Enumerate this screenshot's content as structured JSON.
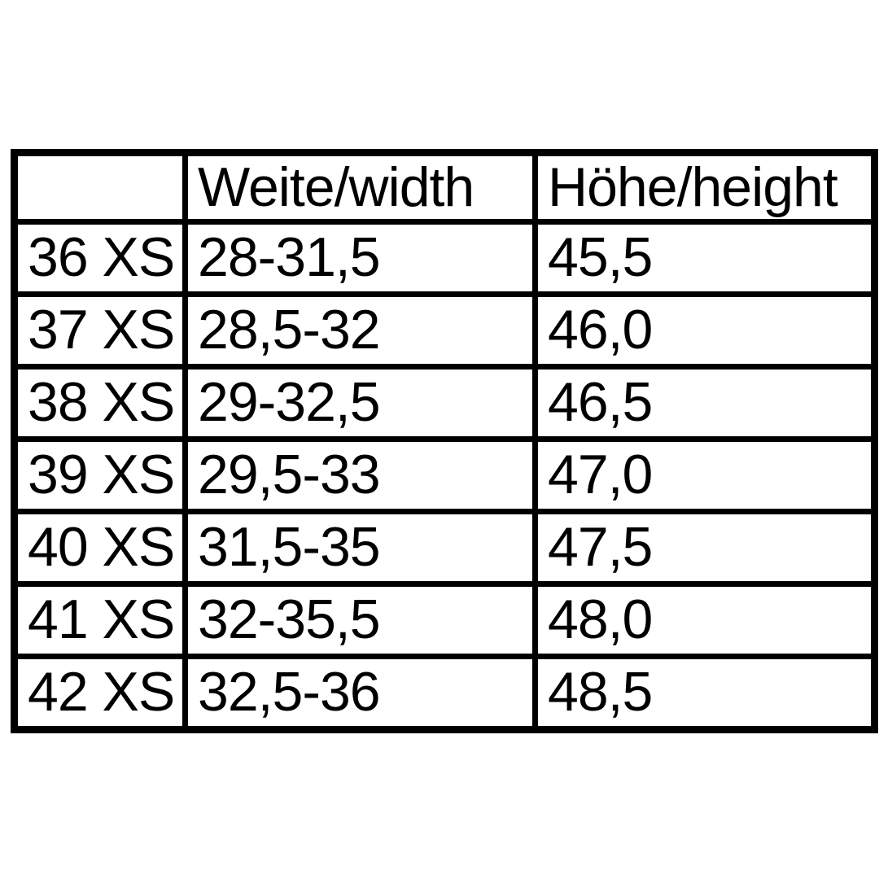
{
  "colors": {
    "background": "#ffffff",
    "border": "#000000",
    "text": "#000000"
  },
  "chart_data": {
    "type": "table",
    "columns": [
      "",
      "Weite/width",
      "Höhe/height"
    ],
    "rows": [
      [
        "36 XS",
        "28-31,5",
        "45,5"
      ],
      [
        "37 XS",
        "28,5-32",
        "46,0"
      ],
      [
        "38 XS",
        "29-32,5",
        "46,5"
      ],
      [
        "39 XS",
        "29,5-33",
        "47,0"
      ],
      [
        "40 XS",
        "31,5-35",
        "47,5"
      ],
      [
        "41 XS",
        "32-35,5",
        "48,0"
      ],
      [
        "42 XS",
        "32,5-36",
        "48,5"
      ]
    ]
  }
}
